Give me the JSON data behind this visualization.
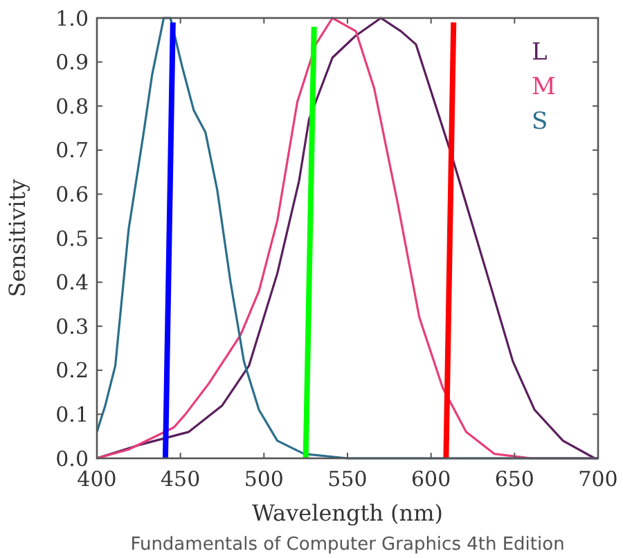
{
  "chart_data": {
    "type": "line",
    "xlabel": "Wavelength (nm)",
    "ylabel": "Sensitivity",
    "annotations": [
      "Fundamentals of Computer Graphics 4th Edition"
    ],
    "xlim": [
      400,
      700
    ],
    "ylim": [
      0,
      1
    ],
    "xticks": [
      400,
      450,
      500,
      550,
      600,
      650,
      700
    ],
    "yticks": [
      {
        "value": 0,
        "label": "0.0"
      },
      {
        "value": 0.1,
        "label": "0.1"
      },
      {
        "value": 0.2,
        "label": "0.2"
      },
      {
        "value": 0.3,
        "label": "0.3"
      },
      {
        "value": 0.4,
        "label": "0.4"
      },
      {
        "value": 0.5,
        "label": "0.5"
      },
      {
        "value": 0.6,
        "label": "0.6"
      },
      {
        "value": 0.7,
        "label": "0.7"
      },
      {
        "value": 0.8,
        "label": "0.8"
      },
      {
        "value": 0.9,
        "label": "0.9"
      },
      {
        "value": 1,
        "label": "1.0"
      }
    ],
    "grid": false,
    "legend": "top right",
    "marker": "none",
    "line_style": "solid",
    "series": [
      {
        "name": "L",
        "color": "#5a1f5c",
        "x": [
          400,
          425,
          455,
          475,
          491,
          508,
          521,
          527,
          541,
          555,
          570,
          582,
          591,
          602,
          613,
          624,
          635,
          649,
          662,
          679,
          698,
          700
        ],
        "values": [
          0,
          0.03,
          0.06,
          0.12,
          0.21,
          0.42,
          0.63,
          0.77,
          0.91,
          0.96,
          1.0,
          0.97,
          0.94,
          0.81,
          0.68,
          0.54,
          0.4,
          0.22,
          0.11,
          0.04,
          0,
          0
        ]
      },
      {
        "name": "M",
        "color": "#e83e7a",
        "x": [
          400,
          419,
          446,
          453,
          467,
          486,
          497,
          508,
          520,
          531,
          541,
          555,
          566,
          580,
          593,
          607,
          621,
          638,
          660,
          700
        ],
        "values": [
          0,
          0.02,
          0.07,
          0.1,
          0.17,
          0.28,
          0.38,
          0.54,
          0.81,
          0.94,
          1.0,
          0.97,
          0.84,
          0.58,
          0.32,
          0.16,
          0.06,
          0.01,
          0,
          0
        ]
      },
      {
        "name": "S",
        "color": "#2a6f8a",
        "x": [
          400,
          405,
          411,
          419,
          428,
          433,
          440,
          444,
          451,
          458,
          465,
          472,
          480,
          488,
          497,
          508,
          524,
          550,
          700
        ],
        "values": [
          0.06,
          0.12,
          0.21,
          0.52,
          0.74,
          0.87,
          1.0,
          1.0,
          0.89,
          0.79,
          0.74,
          0.61,
          0.4,
          0.22,
          0.11,
          0.04,
          0.01,
          0,
          0
        ]
      },
      {
        "color": "#0000ff",
        "x": [
          441,
          445.5
        ],
        "values": [
          0,
          0.99
        ]
      },
      {
        "color": "#00ff00",
        "x": [
          525,
          530
        ],
        "values": [
          0,
          0.98
        ]
      },
      {
        "color": "#ff0000",
        "x": [
          609,
          613.5
        ],
        "values": [
          0,
          0.99
        ]
      }
    ]
  }
}
